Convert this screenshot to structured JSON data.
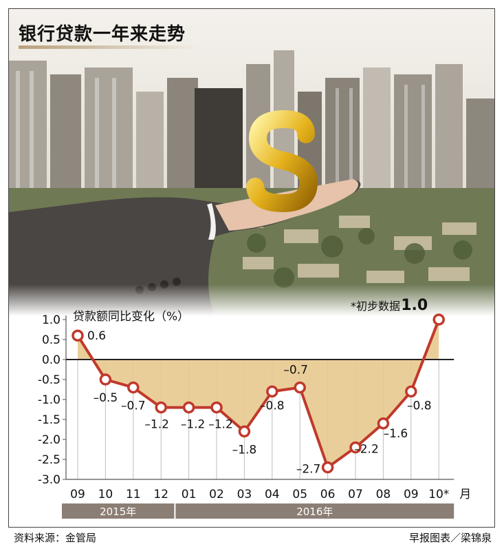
{
  "title": "银行贷款一年来走势",
  "note": "*初步数据",
  "colors": {
    "line": "#c0392b",
    "fill": "#e8c98f",
    "axis": "#555555",
    "year_band": "#8b7e74"
  },
  "chart_data": {
    "type": "area",
    "ylabel": "贷款额同比变化（%）",
    "x": [
      "09",
      "10",
      "11",
      "12",
      "01",
      "02",
      "03",
      "04",
      "05",
      "06",
      "07",
      "08",
      "09",
      "10*"
    ],
    "x_unit": "月",
    "values": [
      0.6,
      -0.5,
      -0.7,
      -1.2,
      -1.2,
      -1.2,
      -1.8,
      -0.8,
      -0.7,
      -2.7,
      -2.2,
      -1.6,
      -0.8,
      1.0
    ],
    "value_labels": [
      "0.6",
      "–0.5",
      "–0.7",
      "–1.2",
      "–1.2",
      "–1.2",
      "–1.8",
      "–0.8",
      "–0.7",
      "–2.7",
      "–2.2",
      "–1.6",
      "–0.8",
      "1.0"
    ],
    "ylim": [
      -3.0,
      1.0
    ],
    "yticks": [
      "1.0",
      "0.5",
      "0.0",
      "-0.5",
      "-1.0",
      "-1.5",
      "-2.0",
      "-2.5",
      "-3.0"
    ],
    "years": [
      {
        "label": "2015年",
        "from": 0,
        "to": 3
      },
      {
        "label": "2016年",
        "from": 4,
        "to": 13
      }
    ],
    "grid": true
  },
  "footer": {
    "source": "资料来源：金管局",
    "credit": "早报图表／梁锦泉"
  }
}
